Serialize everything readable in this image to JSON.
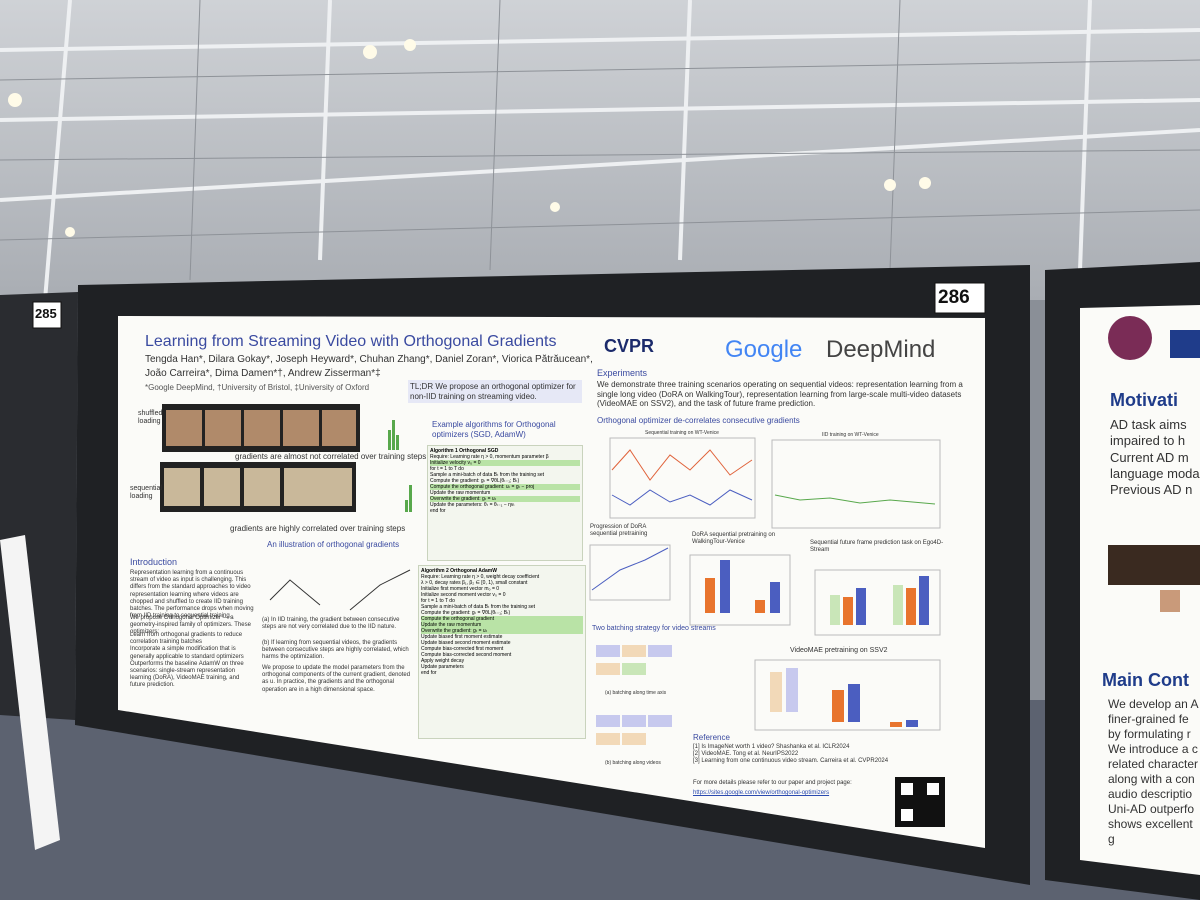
{
  "booths": {
    "left": "285",
    "center": "286"
  },
  "poster": {
    "title": "Learning from Streaming Video with Orthogonal Gradients",
    "authors": "Tengda Han*, Dilara Gokay*, Joseph Heyward*, Chuhan Zhang*, Daniel Zoran*, Viorica Pătrăucean*,",
    "authors2": "João Carreira*, Dima Damen*†, Andrew Zisserman*‡",
    "affiliations": "*Google DeepMind, †University of Bristol, ‡University of Oxford",
    "logo_cvpr": "CVPR",
    "logo_google": "Google",
    "logo_deepmind": "DeepMind",
    "tldr": "TL;DR We propose an orthogonal optimizer for non-IID training on streaming video.",
    "shuffled": "shuffled loading",
    "sequential": "sequential loading",
    "caption_shuffled": "gradients are almost not correlated over training steps",
    "caption_sequential": "gradients are highly correlated over training steps",
    "intro_heading": "Introduction",
    "intro_text": "Representation learning from a continuous stream of video as input is challenging. This differs from the standard approaches to video representation learning where videos are chopped and shuffled to create IID training batches. The performance drops when moving from IID training to sequential training.",
    "propose_text": "We propose Orthogonal Optimizer — a geometry-inspired family of optimizers. These optimizers:",
    "bullets": [
      "Learn from orthogonal gradients to reduce correlation training batches",
      "Incorporate a simple modification that is generally applicable to standard optimizers",
      "Outperforms the baseline AdamW on three scenarios: single-stream representation learning (DoRA), VideoMAE training, and future prediction."
    ],
    "illustration_heading": "An illustration of orthogonal gradients",
    "illus_a": "(a) In IID training, the gradient between consecutive steps are not very correlated due to the IID nature.",
    "illus_b": "(b) If learning from sequential videos, the gradients between consecutive steps are highly correlated, which harms the optimization.",
    "illus_c": "We propose to update the model parameters from the orthogonal components of the current gradient, denoted as u. In practice, the gradients and the orthogonal operation are in a high dimensional space.",
    "algo_heading": "Example algorithms for Orthogonal optimizers (SGD, AdamW)",
    "algo1": "Algorithm 1 Orthogonal SGD",
    "algo1_lines": [
      "Require: Learning rate η > 0, momentum parameter β",
      "Initialize velocity v₀ = 0",
      "for t = 1 to T do",
      "Sample a mini-batch of data Bₜ from the training set",
      "Compute the gradient: gₜ = ∇θL(θₜ₋₁; Bₜ)",
      "Compute the orthogonal gradient: uₜ = gₜ − proj",
      "Update the raw momentum",
      "Overwrite the gradient: gₜ = uₜ",
      "Update the parameters: θₜ = θₜ₋₁ − ηvₜ",
      "end for"
    ],
    "algo2": "Algorithm 2 Orthogonal AdamW",
    "algo2_lines": [
      "Require: Learning rate η > 0, weight decay coefficient",
      "λ > 0, decay rates β₁, β₂ ∈ [0, 1), small constant",
      "Initialize first moment vector m₀ = 0",
      "Initialize second moment vector v₀ = 0",
      "for t = 1 to T do",
      "Sample a mini-batch of data Bₜ from the training set",
      "Compute the gradient: gₜ = ∇θL(θₜ₋₁; Bₜ)",
      "Compute the orthogonal gradient",
      "Update the raw momentum",
      "Overwrite the gradient: gₜ = uₜ",
      "Update biased first moment estimate",
      "Update biased second moment estimate",
      "Compute bias-corrected first moment",
      "Compute bias-corrected second moment",
      "Apply weight decay",
      "Update parameters",
      "end for"
    ],
    "exp_heading": "Experiments",
    "exp_text": "We demonstrate three training scenarios operating on sequential videos: representation learning from a single long video (DoRA on WalkingTour), representation learning from large-scale multi-video datasets (VideoMAE on SSV2), and the task of future frame prediction.",
    "decor_heading": "Orthogonal optimizer de-correlates consecutive gradients",
    "plot1_title": "Sequential training on WT-Venice",
    "plot2_title": "IID training on WT-Venice",
    "plot3_title": "Progression of DoRA sequential pretraining",
    "plot4_title": "DoRA sequential pretraining on WalkingTour-Venice",
    "plot5_title": "Sequential future frame prediction task on Ego4D-Stream",
    "batching_heading": "Two batching strategy for video streams",
    "batch_a": "(a) batching along time axis",
    "batch_b": "(b) batching along videos",
    "plot6_title": "VideoMAE pretraining on SSV2",
    "reference_heading": "Reference",
    "references": [
      "[1] Is ImageNet worth 1 video? Shashanka et al. ICLR2024",
      "[2] VideoMAE. Tong et al. NeurIPS2022",
      "[3] Learning from one continuous video stream. Carreira et al. CVPR2024"
    ],
    "details": "For more details please refer to our paper and project page:",
    "url": "https://sites.google.com/view/orthogonal-optimizers"
  },
  "right_poster": {
    "heading1": "Motivati",
    "bullets1": [
      "AD task aims",
      "impaired to h",
      "Current AD m",
      "language moda",
      "Previous AD n"
    ],
    "heading2": "Main Cont",
    "bullets2": [
      "We develop an A",
      "finer-grained fe",
      "by formulating r",
      "We introduce a c",
      "related character",
      "along with a con",
      "audio descriptio",
      "Uni-AD outperfo",
      "shows excellent g"
    ]
  }
}
